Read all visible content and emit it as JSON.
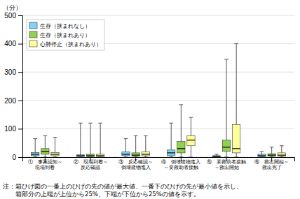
{
  "chart_data": {
    "type": "box",
    "ylabel": "（分）",
    "categories": [
      "①　事案認知～\n現場到着",
      "②　現場到着～\n反応確認",
      "③　反応確認～\n倒壊建物進入",
      "④　倒壊建物進入\n～要救助者接触",
      "⑤　要救助者接触\n～救出開始",
      "⑥　救出開始～\n救出完了"
    ],
    "series": [
      {
        "name": "生存（挟まれなし）",
        "color": "#7fd4f5",
        "min": [
          0,
          0,
          0,
          0,
          0,
          0
        ],
        "q1": [
          5,
          2,
          5,
          5,
          1,
          2
        ],
        "median": [
          10,
          5,
          10,
          15,
          3,
          5
        ],
        "q3": [
          16,
          8,
          18,
          25,
          5,
          10
        ],
        "max": [
          65,
          120,
          65,
          120,
          10,
          20
        ]
      },
      {
        "name": "生存（挟まれあり）",
        "color": "#92d050",
        "min": [
          0,
          0,
          0,
          0,
          0,
          0
        ],
        "q1": [
          10,
          2,
          3,
          15,
          20,
          3
        ],
        "median": [
          20,
          5,
          7,
          30,
          35,
          7
        ],
        "q3": [
          30,
          10,
          15,
          55,
          60,
          12
        ],
        "max": [
          75,
          120,
          75,
          185,
          345,
          35
        ]
      },
      {
        "name": "心肺停止（挟まれあり）",
        "color": "#ffff99",
        "min": [
          0,
          0,
          0,
          0,
          0,
          0
        ],
        "q1": [
          5,
          2,
          5,
          40,
          15,
          3
        ],
        "median": [
          10,
          5,
          10,
          60,
          30,
          7
        ],
        "q3": [
          16,
          10,
          18,
          75,
          115,
          15
        ],
        "max": [
          70,
          120,
          75,
          140,
          400,
          40
        ]
      }
    ],
    "ylim": [
      0,
      500
    ],
    "yticks": [
      0,
      100,
      200,
      300,
      400,
      500
    ],
    "grid": true,
    "legend": "upper left",
    "annotations": [
      "注：箱ひげ図の一番上のひげの先の値が最大値、一番下のひげの先が最小値を示し、\n　　箱部分の上端が上位から25%、下端が下位から25%の値を示す。"
    ]
  }
}
